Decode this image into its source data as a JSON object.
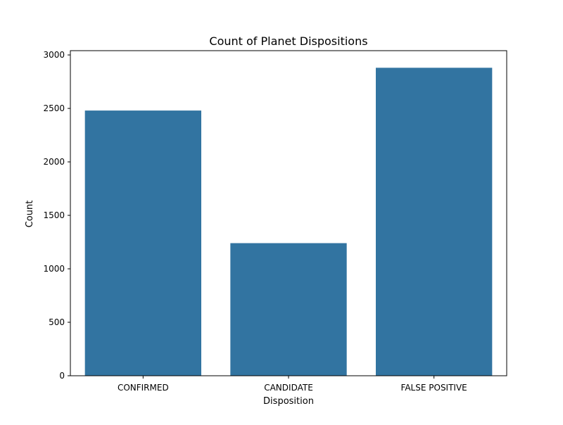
{
  "chart_data": {
    "type": "bar",
    "title": "Count of Planet Dispositions",
    "xlabel": "Disposition",
    "ylabel": "Count",
    "categories": [
      "CONFIRMED",
      "CANDIDATE",
      "FALSE POSITIVE"
    ],
    "values": [
      2480,
      1240,
      2880
    ],
    "ylim": [
      0,
      3040
    ],
    "yticks": [
      0,
      500,
      1000,
      1500,
      2000,
      2500,
      3000
    ],
    "grid": false,
    "legend": "none",
    "bar_color": "#3274a1"
  }
}
